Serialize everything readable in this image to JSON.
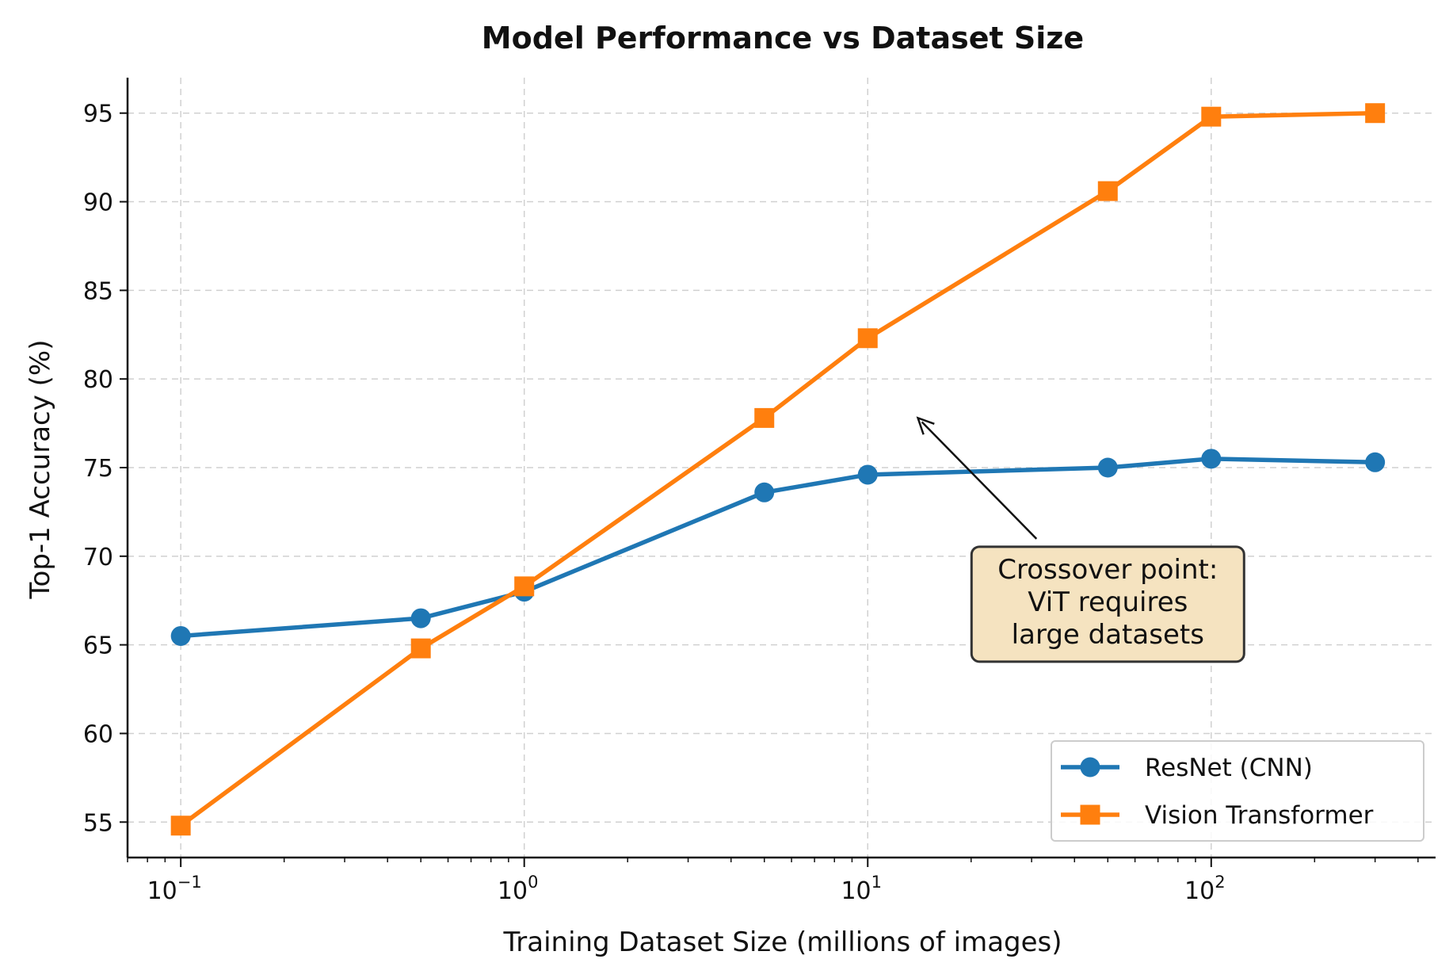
{
  "chart_data": {
    "type": "line",
    "title": "Model Performance vs Dataset Size",
    "xlabel": "Training Dataset Size (millions of images)",
    "ylabel": "Top-1 Accuracy (%)",
    "xscale": "log",
    "xlim": [
      0.07,
      450
    ],
    "ylim": [
      53,
      97
    ],
    "grid": true,
    "legend_position": "lower right",
    "x_ticks": [
      {
        "value": 0.1,
        "base": "10",
        "exp": "−1"
      },
      {
        "value": 1,
        "base": "10",
        "exp": "0"
      },
      {
        "value": 10,
        "base": "10",
        "exp": "1"
      },
      {
        "value": 100,
        "base": "10",
        "exp": "2"
      }
    ],
    "y_ticks": [
      55,
      60,
      65,
      70,
      75,
      80,
      85,
      90,
      95
    ],
    "x": [
      0.1,
      0.5,
      1,
      5,
      10,
      50,
      100,
      300
    ],
    "series": [
      {
        "name": "ResNet (CNN)",
        "color": "#1f77b4",
        "marker": "circle",
        "values": [
          65.5,
          66.5,
          68.0,
          73.6,
          74.6,
          75.0,
          75.5,
          75.3
        ]
      },
      {
        "name": "Vision Transformer",
        "color": "#ff7f0e",
        "marker": "square",
        "values": [
          54.8,
          64.8,
          68.3,
          77.8,
          82.3,
          90.6,
          94.8,
          95.0
        ]
      }
    ],
    "annotations": [
      {
        "lines": [
          "Crossover point:",
          "ViT requires",
          "large datasets"
        ],
        "text_at": [
          50,
          70
        ],
        "arrow_to": [
          14,
          77.8
        ],
        "box_color": "#f5e3c0",
        "border_color": "#333333"
      }
    ]
  }
}
